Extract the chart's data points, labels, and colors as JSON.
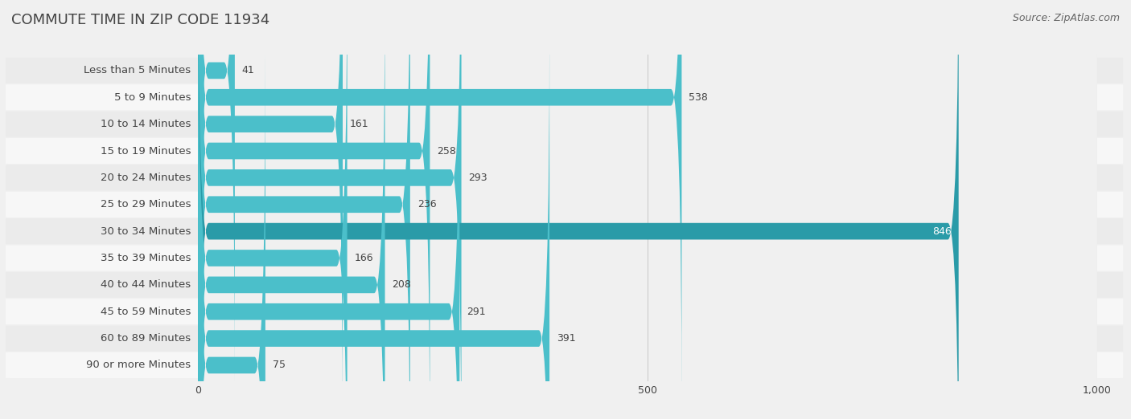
{
  "title": "COMMUTE TIME IN ZIP CODE 11934",
  "source": "Source: ZipAtlas.com",
  "categories": [
    "Less than 5 Minutes",
    "5 to 9 Minutes",
    "10 to 14 Minutes",
    "15 to 19 Minutes",
    "20 to 24 Minutes",
    "25 to 29 Minutes",
    "30 to 34 Minutes",
    "35 to 39 Minutes",
    "40 to 44 Minutes",
    "45 to 59 Minutes",
    "60 to 89 Minutes",
    "90 or more Minutes"
  ],
  "values": [
    41,
    538,
    161,
    258,
    293,
    236,
    846,
    166,
    208,
    291,
    391,
    75
  ],
  "bar_color_normal": "#4bbfca",
  "bar_color_highlight": "#2a9ba8",
  "highlight_index": 6,
  "background_color": "#f0f0f0",
  "row_bg_even": "#ebebeb",
  "row_bg_odd": "#f7f7f7",
  "bar_height": 0.62,
  "xlim": [
    0,
    1000
  ],
  "xticks": [
    0,
    500,
    1000
  ],
  "title_fontsize": 13,
  "label_fontsize": 9.5,
  "value_fontsize": 9,
  "source_fontsize": 9,
  "text_color": "#444444",
  "source_color": "#666666",
  "grid_color": "#cccccc"
}
